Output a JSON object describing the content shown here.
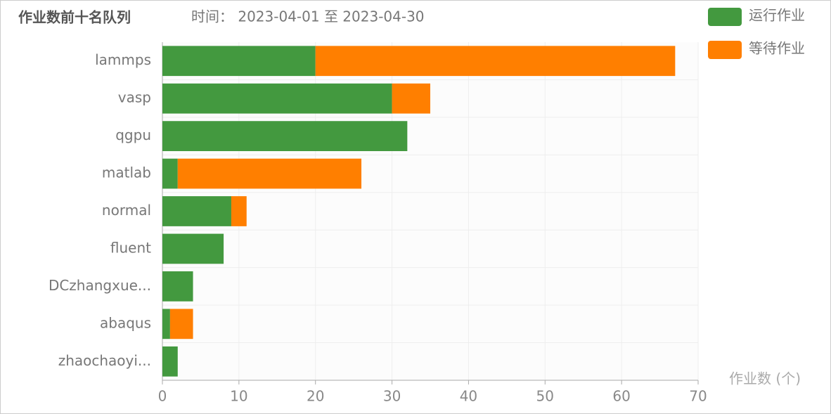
{
  "chart_data": {
    "type": "stacked-bar-horizontal",
    "title": "作业数前十名队列",
    "subtitle": "时间：  2023-04-01 至 2023-04-30",
    "x_axis_label": "作业数 (个)",
    "categories": [
      "lammps",
      "vasp",
      "qgpu",
      "matlab",
      "normal",
      "fluent",
      "DCzhangxue...",
      "abaqus",
      "zhaochaoyi..."
    ],
    "series": [
      {
        "name": "运行作业",
        "color": "#43993f",
        "values": [
          20,
          30,
          32,
          2,
          9,
          8,
          4,
          1,
          2
        ]
      },
      {
        "name": "等待作业",
        "color": "#ff7f00",
        "values": [
          47,
          5,
          0,
          24,
          2,
          0,
          0,
          3,
          0
        ]
      }
    ],
    "xlim": [
      0,
      70
    ],
    "xticks": [
      0,
      10,
      20,
      30,
      40,
      50,
      60,
      70
    ],
    "grid": true
  }
}
